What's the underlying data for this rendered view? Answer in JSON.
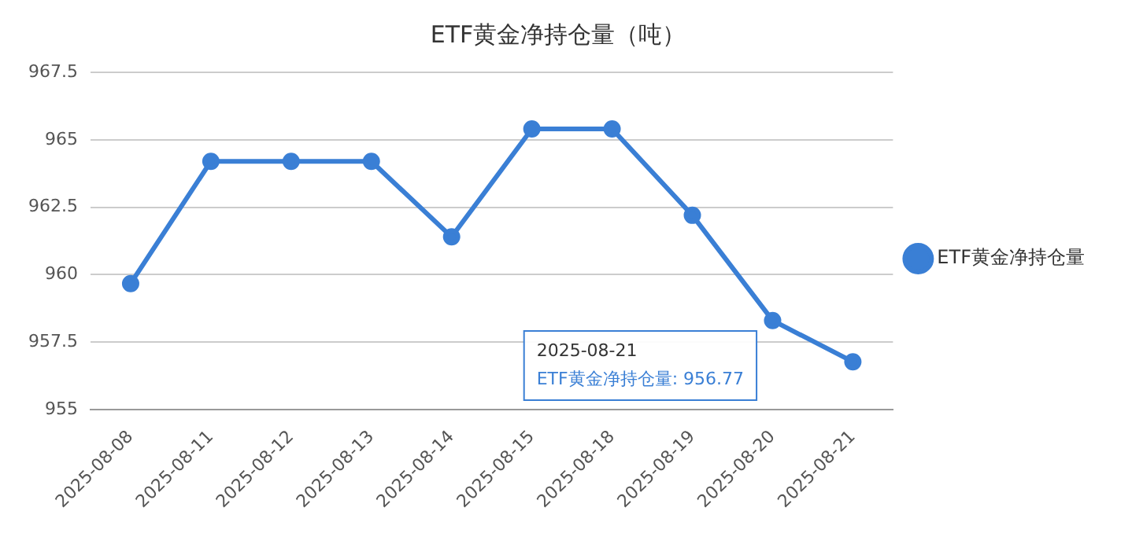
{
  "chart_data": {
    "type": "line",
    "title": "ETF黄金净持仓量（吨）",
    "categories": [
      "2025-08-08",
      "2025-08-11",
      "2025-08-12",
      "2025-08-13",
      "2025-08-14",
      "2025-08-15",
      "2025-08-18",
      "2025-08-19",
      "2025-08-20",
      "2025-08-21"
    ],
    "series": [
      {
        "name": "ETF黄金净持仓量",
        "color": "#3a7fd5",
        "values": [
          959.67,
          964.2,
          964.2,
          964.2,
          961.4,
          965.4,
          965.4,
          962.2,
          958.3,
          956.77
        ]
      }
    ],
    "ylim": [
      955,
      967.5
    ],
    "yticks": [
      955,
      957.5,
      960,
      962.5,
      965,
      967.5
    ],
    "grid": "y",
    "legend": "right",
    "marker": "circle",
    "line_style": "solid",
    "annotations": [
      "2025-08-21\nETF黄金净持仓量: 956.77"
    ]
  }
}
